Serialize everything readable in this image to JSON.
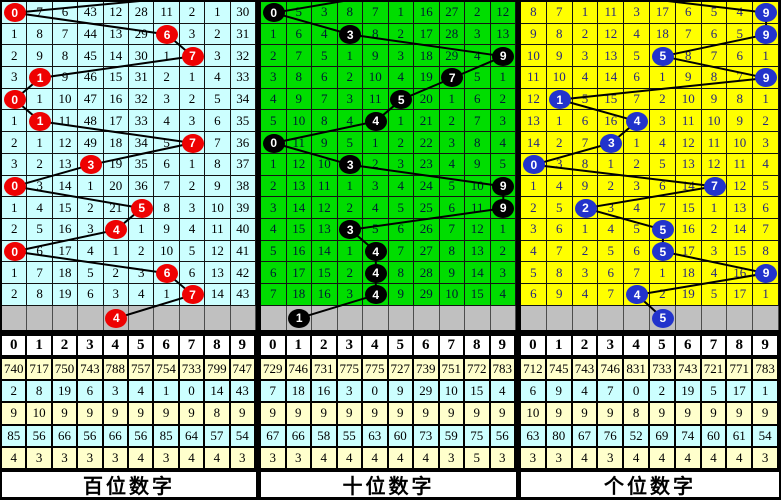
{
  "chart_data": {
    "type": "table",
    "title": "",
    "description": "Lottery digit trend chart with hundreds / tens / units digit panels; circled numbers mark the drawn digit per period, other cells show miss counts",
    "digit_header": [
      "0",
      "1",
      "2",
      "3",
      "4",
      "5",
      "6",
      "7",
      "8",
      "9"
    ],
    "line_color": "#000000",
    "pending_row_color": "#C0C0C0",
    "stats_row_colors": [
      "#FFFFCC",
      "#CCFFFF",
      "#FFFFCC",
      "#CCFFFF",
      "#FFFFCC"
    ],
    "panels": [
      {
        "name": "hundreds",
        "footer_label": "百位数字",
        "bg": "#CCFFFF",
        "text_color": "#000000",
        "circle_color": "#EE0202",
        "circle_text_color": "#FFFFFF",
        "prev_stub_col": 9,
        "drawn_sequence": [
          0,
          6,
          7,
          1,
          0,
          1,
          7,
          3,
          0,
          5,
          4,
          0,
          6,
          7
        ],
        "next_draw": 4,
        "rows": [
          [
            "0",
            "7",
            "6",
            "43",
            "12",
            "28",
            "11",
            "2",
            "1",
            "30"
          ],
          [
            "1",
            "8",
            "7",
            "44",
            "13",
            "29",
            "6",
            "3",
            "2",
            "31"
          ],
          [
            "2",
            "9",
            "8",
            "45",
            "14",
            "30",
            "1",
            "7",
            "3",
            "32"
          ],
          [
            "3",
            "1",
            "9",
            "46",
            "15",
            "31",
            "2",
            "1",
            "4",
            "33"
          ],
          [
            "0",
            "1",
            "10",
            "47",
            "16",
            "32",
            "3",
            "2",
            "5",
            "34"
          ],
          [
            "1",
            "1",
            "11",
            "48",
            "17",
            "33",
            "4",
            "3",
            "6",
            "35"
          ],
          [
            "2",
            "1",
            "12",
            "49",
            "18",
            "34",
            "5",
            "7",
            "7",
            "36"
          ],
          [
            "3",
            "2",
            "13",
            "3",
            "19",
            "35",
            "6",
            "1",
            "8",
            "37"
          ],
          [
            "0",
            "3",
            "14",
            "1",
            "20",
            "36",
            "7",
            "2",
            "9",
            "38"
          ],
          [
            "1",
            "4",
            "15",
            "2",
            "21",
            "5",
            "8",
            "3",
            "10",
            "39"
          ],
          [
            "2",
            "5",
            "16",
            "3",
            "4",
            "1",
            "9",
            "4",
            "11",
            "40"
          ],
          [
            "0",
            "6",
            "17",
            "4",
            "1",
            "2",
            "10",
            "5",
            "12",
            "41"
          ],
          [
            "1",
            "7",
            "18",
            "5",
            "2",
            "3",
            "6",
            "6",
            "13",
            "42"
          ],
          [
            "2",
            "8",
            "19",
            "6",
            "3",
            "4",
            "1",
            "7",
            "14",
            "43"
          ]
        ],
        "circles": [
          {
            "row": 0,
            "col": 0,
            "label": "0"
          },
          {
            "row": 1,
            "col": 6,
            "label": "6"
          },
          {
            "row": 2,
            "col": 7,
            "label": "7"
          },
          {
            "row": 3,
            "col": 1,
            "label": "1"
          },
          {
            "row": 4,
            "col": 0,
            "label": "0"
          },
          {
            "row": 5,
            "col": 1,
            "label": "1"
          },
          {
            "row": 6,
            "col": 7,
            "label": "7"
          },
          {
            "row": 7,
            "col": 3,
            "label": "3"
          },
          {
            "row": 8,
            "col": 0,
            "label": "0"
          },
          {
            "row": 9,
            "col": 5,
            "label": "5"
          },
          {
            "row": 10,
            "col": 4,
            "label": "4"
          },
          {
            "row": 11,
            "col": 0,
            "label": "0"
          },
          {
            "row": 12,
            "col": 6,
            "label": "6"
          },
          {
            "row": 13,
            "col": 7,
            "label": "7"
          }
        ],
        "next_circle": {
          "col": 4,
          "label": "4"
        },
        "stats": [
          [
            "740",
            "717",
            "750",
            "743",
            "788",
            "757",
            "754",
            "733",
            "799",
            "747"
          ],
          [
            "2",
            "8",
            "19",
            "6",
            "3",
            "4",
            "1",
            "0",
            "14",
            "43"
          ],
          [
            "9",
            "10",
            "9",
            "9",
            "9",
            "9",
            "9",
            "9",
            "8",
            "9"
          ],
          [
            "85",
            "56",
            "66",
            "56",
            "66",
            "56",
            "85",
            "64",
            "57",
            "54"
          ],
          [
            "4",
            "3",
            "3",
            "3",
            "3",
            "4",
            "3",
            "4",
            "4",
            "3"
          ]
        ]
      },
      {
        "name": "tens",
        "footer_label": "十位数字",
        "bg": "#00DD00",
        "text_color": "#001a33",
        "circle_color": "#000000",
        "circle_text_color": "#FFFFFF",
        "prev_stub_col": 5,
        "drawn_sequence": [
          0,
          3,
          9,
          7,
          5,
          4,
          0,
          3,
          9,
          9,
          3,
          4,
          4,
          4
        ],
        "next_draw": 1,
        "rows": [
          [
            "0",
            "5",
            "3",
            "8",
            "7",
            "1",
            "16",
            "27",
            "2",
            "12"
          ],
          [
            "1",
            "6",
            "4",
            "3",
            "8",
            "2",
            "17",
            "28",
            "3",
            "13"
          ],
          [
            "2",
            "7",
            "5",
            "1",
            "9",
            "3",
            "18",
            "29",
            "4",
            "9"
          ],
          [
            "3",
            "8",
            "6",
            "2",
            "10",
            "4",
            "19",
            "7",
            "5",
            "1"
          ],
          [
            "4",
            "9",
            "7",
            "3",
            "11",
            "5",
            "20",
            "1",
            "6",
            "2"
          ],
          [
            "5",
            "10",
            "8",
            "4",
            "4",
            "1",
            "21",
            "2",
            "7",
            "3"
          ],
          [
            "0",
            "11",
            "9",
            "5",
            "1",
            "2",
            "22",
            "3",
            "8",
            "4"
          ],
          [
            "1",
            "12",
            "10",
            "3",
            "2",
            "3",
            "23",
            "4",
            "9",
            "5"
          ],
          [
            "2",
            "13",
            "11",
            "1",
            "3",
            "4",
            "24",
            "5",
            "10",
            "9"
          ],
          [
            "3",
            "14",
            "12",
            "2",
            "4",
            "5",
            "25",
            "6",
            "11",
            "9"
          ],
          [
            "4",
            "15",
            "13",
            "3",
            "5",
            "6",
            "26",
            "7",
            "12",
            "1"
          ],
          [
            "5",
            "16",
            "14",
            "1",
            "4",
            "7",
            "27",
            "8",
            "13",
            "2"
          ],
          [
            "6",
            "17",
            "15",
            "2",
            "4",
            "8",
            "28",
            "9",
            "14",
            "3"
          ],
          [
            "7",
            "18",
            "16",
            "3",
            "4",
            "9",
            "29",
            "10",
            "15",
            "4"
          ]
        ],
        "circles": [
          {
            "row": 0,
            "col": 0,
            "label": "0"
          },
          {
            "row": 1,
            "col": 3,
            "label": "3"
          },
          {
            "row": 2,
            "col": 9,
            "label": "9"
          },
          {
            "row": 3,
            "col": 7,
            "label": "7"
          },
          {
            "row": 4,
            "col": 5,
            "label": "5"
          },
          {
            "row": 5,
            "col": 4,
            "label": "4"
          },
          {
            "row": 6,
            "col": 0,
            "label": "0"
          },
          {
            "row": 7,
            "col": 3,
            "label": "3"
          },
          {
            "row": 8,
            "col": 9,
            "label": "9"
          },
          {
            "row": 9,
            "col": 9,
            "label": "9"
          },
          {
            "row": 10,
            "col": 3,
            "label": "3"
          },
          {
            "row": 11,
            "col": 4,
            "label": "4"
          },
          {
            "row": 12,
            "col": 4,
            "label": "4"
          },
          {
            "row": 13,
            "col": 4,
            "label": "4"
          }
        ],
        "next_circle": {
          "col": 1,
          "label": "1"
        },
        "stats": [
          [
            "729",
            "746",
            "731",
            "775",
            "775",
            "727",
            "739",
            "751",
            "772",
            "783"
          ],
          [
            "7",
            "18",
            "16",
            "3",
            "0",
            "9",
            "29",
            "10",
            "15",
            "4"
          ],
          [
            "9",
            "9",
            "9",
            "9",
            "9",
            "9",
            "9",
            "9",
            "9",
            "9"
          ],
          [
            "67",
            "66",
            "58",
            "55",
            "63",
            "60",
            "73",
            "59",
            "75",
            "56"
          ],
          [
            "3",
            "3",
            "4",
            "4",
            "4",
            "4",
            "4",
            "3",
            "5",
            "3"
          ]
        ]
      },
      {
        "name": "units",
        "footer_label": "个位数字",
        "bg": "#FFFF00",
        "text_color": "#26267e",
        "circle_color": "#2233CC",
        "circle_text_color": "#FFFFFF",
        "prev_stub_col": 2,
        "drawn_sequence": [
          9,
          9,
          5,
          9,
          1,
          4,
          3,
          0,
          7,
          2,
          5,
          5,
          9,
          4
        ],
        "next_draw": 5,
        "rows": [
          [
            "8",
            "7",
            "1",
            "11",
            "3",
            "17",
            "6",
            "5",
            "4",
            "9"
          ],
          [
            "9",
            "8",
            "2",
            "12",
            "4",
            "18",
            "7",
            "6",
            "5",
            "9"
          ],
          [
            "10",
            "9",
            "3",
            "13",
            "5",
            "5",
            "8",
            "7",
            "6",
            "1"
          ],
          [
            "11",
            "10",
            "4",
            "14",
            "6",
            "1",
            "9",
            "8",
            "7",
            "9"
          ],
          [
            "12",
            "1",
            "5",
            "15",
            "7",
            "2",
            "10",
            "9",
            "8",
            "1"
          ],
          [
            "13",
            "1",
            "6",
            "16",
            "4",
            "3",
            "11",
            "10",
            "9",
            "2"
          ],
          [
            "14",
            "2",
            "7",
            "3",
            "1",
            "4",
            "12",
            "11",
            "10",
            "3"
          ],
          [
            "0",
            "3",
            "8",
            "1",
            "2",
            "5",
            "13",
            "12",
            "11",
            "4"
          ],
          [
            "1",
            "4",
            "9",
            "2",
            "3",
            "6",
            "14",
            "7",
            "12",
            "5"
          ],
          [
            "2",
            "5",
            "2",
            "3",
            "4",
            "7",
            "15",
            "1",
            "13",
            "6"
          ],
          [
            "3",
            "6",
            "1",
            "4",
            "5",
            "5",
            "16",
            "2",
            "14",
            "7"
          ],
          [
            "4",
            "7",
            "2",
            "5",
            "6",
            "5",
            "17",
            "3",
            "15",
            "8"
          ],
          [
            "5",
            "8",
            "3",
            "6",
            "7",
            "1",
            "18",
            "4",
            "16",
            "9"
          ],
          [
            "6",
            "9",
            "4",
            "7",
            "4",
            "2",
            "19",
            "5",
            "17",
            "1"
          ]
        ],
        "circles": [
          {
            "row": 0,
            "col": 9,
            "label": "9"
          },
          {
            "row": 1,
            "col": 9,
            "label": "9"
          },
          {
            "row": 2,
            "col": 5,
            "label": "5"
          },
          {
            "row": 3,
            "col": 9,
            "label": "9"
          },
          {
            "row": 4,
            "col": 1,
            "label": "1"
          },
          {
            "row": 5,
            "col": 4,
            "label": "4"
          },
          {
            "row": 6,
            "col": 3,
            "label": "3"
          },
          {
            "row": 7,
            "col": 0,
            "label": "0"
          },
          {
            "row": 8,
            "col": 7,
            "label": "7"
          },
          {
            "row": 9,
            "col": 2,
            "label": "2"
          },
          {
            "row": 10,
            "col": 5,
            "label": "5"
          },
          {
            "row": 11,
            "col": 5,
            "label": "5"
          },
          {
            "row": 12,
            "col": 9,
            "label": "9"
          },
          {
            "row": 13,
            "col": 4,
            "label": "4"
          }
        ],
        "next_circle": {
          "col": 5,
          "label": "5"
        },
        "stats": [
          [
            "712",
            "745",
            "743",
            "746",
            "831",
            "733",
            "743",
            "721",
            "771",
            "783"
          ],
          [
            "6",
            "9",
            "4",
            "7",
            "0",
            "2",
            "19",
            "5",
            "17",
            "1"
          ],
          [
            "10",
            "9",
            "9",
            "9",
            "8",
            "9",
            "9",
            "9",
            "9",
            "9"
          ],
          [
            "63",
            "80",
            "67",
            "76",
            "52",
            "69",
            "74",
            "60",
            "61",
            "54"
          ],
          [
            "3",
            "3",
            "4",
            "3",
            "4",
            "4",
            "4",
            "4",
            "4",
            "3"
          ]
        ]
      }
    ]
  }
}
